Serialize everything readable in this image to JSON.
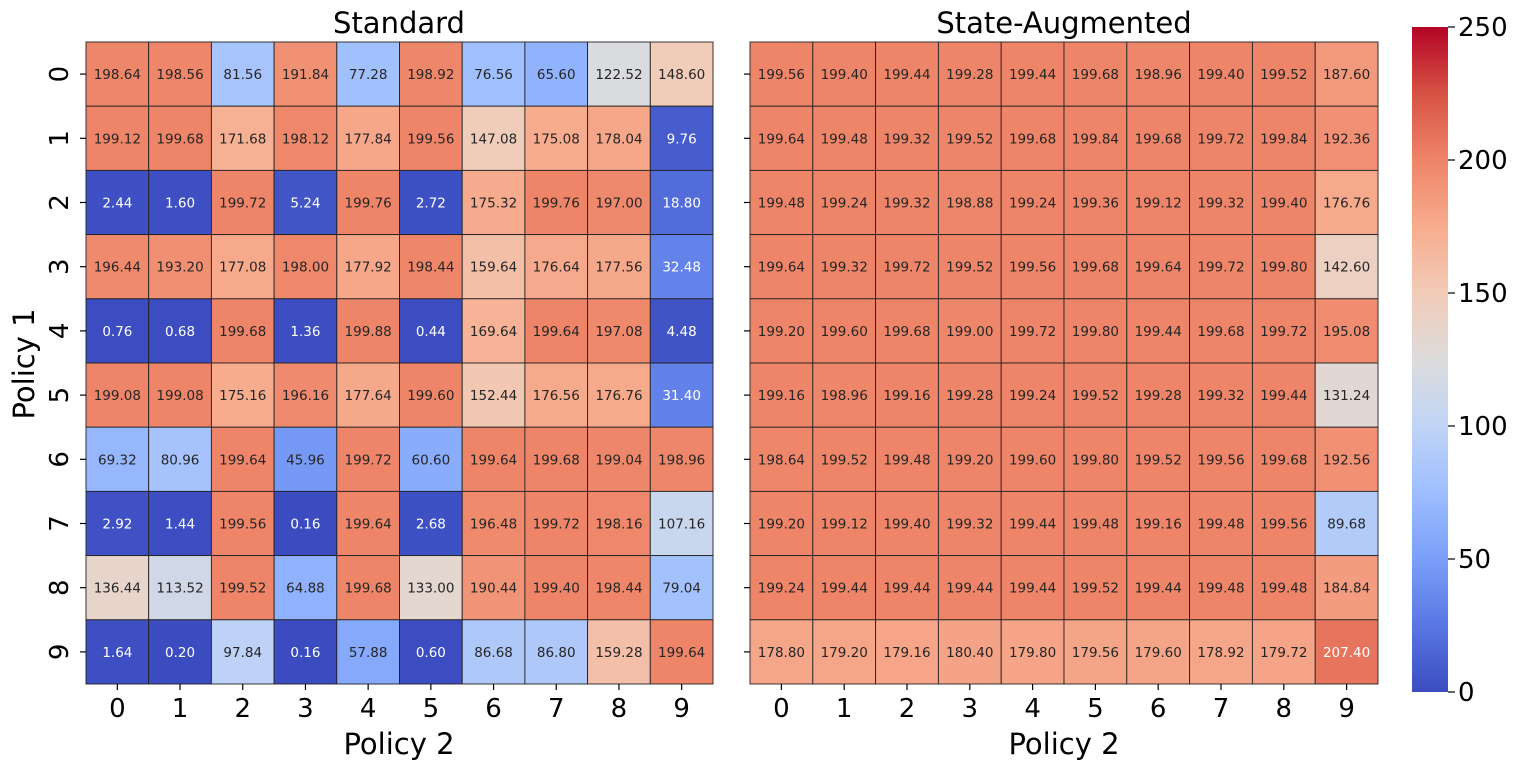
{
  "chart_data": {
    "type": "heatmap",
    "colormap": "coolwarm",
    "color_range": [
      0,
      250
    ],
    "colorbar_ticks": [
      "0",
      "50",
      "100",
      "150",
      "200",
      "250"
    ],
    "tick_labels": [
      "0",
      "1",
      "2",
      "3",
      "4",
      "5",
      "6",
      "7",
      "8",
      "9"
    ],
    "ylabel": "Policy 1",
    "panels": [
      {
        "title": "Standard",
        "xlabel": "Policy 2",
        "values": [
          [
            198.64,
            198.56,
            81.56,
            191.84,
            77.28,
            198.92,
            76.56,
            65.6,
            122.52,
            148.6
          ],
          [
            199.12,
            199.68,
            171.68,
            198.12,
            177.84,
            199.56,
            147.08,
            175.08,
            178.04,
            9.76
          ],
          [
            2.44,
            1.6,
            199.72,
            5.24,
            199.76,
            2.72,
            175.32,
            199.76,
            197.0,
            18.8
          ],
          [
            196.44,
            193.2,
            177.08,
            198.0,
            177.92,
            198.44,
            159.64,
            176.64,
            177.56,
            32.48
          ],
          [
            0.76,
            0.68,
            199.68,
            1.36,
            199.88,
            0.44,
            169.64,
            199.64,
            197.08,
            4.48
          ],
          [
            199.08,
            199.08,
            175.16,
            196.16,
            177.64,
            199.6,
            152.44,
            176.56,
            176.76,
            31.4
          ],
          [
            69.32,
            80.96,
            199.64,
            45.96,
            199.72,
            60.6,
            199.64,
            199.68,
            199.04,
            198.96
          ],
          [
            2.92,
            1.44,
            199.56,
            0.16,
            199.64,
            2.68,
            196.48,
            199.72,
            198.16,
            107.16
          ],
          [
            136.44,
            113.52,
            199.52,
            64.88,
            199.68,
            133.0,
            190.44,
            199.4,
            198.44,
            79.04
          ],
          [
            1.64,
            0.2,
            97.84,
            0.16,
            57.88,
            0.6,
            86.68,
            86.8,
            159.28,
            199.64
          ]
        ]
      },
      {
        "title": "State-Augmented",
        "xlabel": "Policy 2",
        "values": [
          [
            199.56,
            199.4,
            199.44,
            199.28,
            199.44,
            199.68,
            198.96,
            199.4,
            199.52,
            187.6
          ],
          [
            199.64,
            199.48,
            199.32,
            199.52,
            199.68,
            199.84,
            199.68,
            199.72,
            199.84,
            192.36
          ],
          [
            199.48,
            199.24,
            199.32,
            198.88,
            199.24,
            199.36,
            199.12,
            199.32,
            199.4,
            176.76
          ],
          [
            199.64,
            199.32,
            199.72,
            199.52,
            199.56,
            199.68,
            199.64,
            199.72,
            199.8,
            142.6
          ],
          [
            199.2,
            199.6,
            199.68,
            199.0,
            199.72,
            199.8,
            199.44,
            199.68,
            199.72,
            195.08
          ],
          [
            199.16,
            198.96,
            199.16,
            199.28,
            199.24,
            199.52,
            199.28,
            199.32,
            199.44,
            131.24
          ],
          [
            198.64,
            199.52,
            199.48,
            199.2,
            199.6,
            199.8,
            199.52,
            199.56,
            199.68,
            192.56
          ],
          [
            199.2,
            199.12,
            199.4,
            199.32,
            199.44,
            199.48,
            199.16,
            199.48,
            199.56,
            89.68
          ],
          [
            199.24,
            199.44,
            199.44,
            199.44,
            199.44,
            199.52,
            199.44,
            199.48,
            199.48,
            184.84
          ],
          [
            178.8,
            179.2,
            179.16,
            180.4,
            179.8,
            179.56,
            179.6,
            178.92,
            179.72,
            207.4
          ]
        ]
      }
    ]
  }
}
